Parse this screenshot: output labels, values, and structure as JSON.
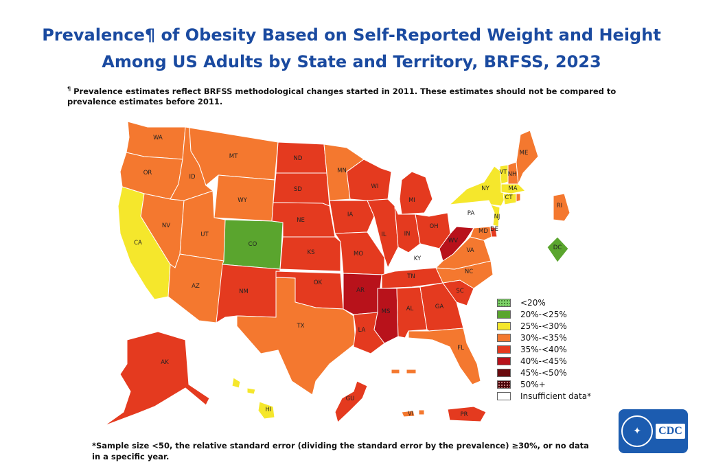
{
  "title": {
    "line1": "Prevalence¶ of Obesity Based on Self-Reported Weight and Height",
    "line2": "Among US Adults by State and Territory, BRFSS, 2023"
  },
  "footnote": {
    "mark": "¶",
    "text": "Prevalence estimates reflect BRFSS methodological changes started in 2011. These estimates should not be compared to prevalence estimates before 2011."
  },
  "legend": [
    {
      "label": "<20%",
      "color": "#7fd36a",
      "pattern": "dots"
    },
    {
      "label": "20%-<25%",
      "color": "#5aa52e"
    },
    {
      "label": "25%-<30%",
      "color": "#f5e72c"
    },
    {
      "label": "30%-<35%",
      "color": "#f4782f"
    },
    {
      "label": "35%-<40%",
      "color": "#e43a1f"
    },
    {
      "label": "40%-<45%",
      "color": "#b8121b"
    },
    {
      "label": "45%-<50%",
      "color": "#6a0a0e"
    },
    {
      "label": "50%+",
      "color": "#4a0508",
      "pattern": "dots"
    },
    {
      "label": "Insufficient data*",
      "color": "#ffffff"
    }
  ],
  "states": {
    "WA": "30%-<35%",
    "OR": "30%-<35%",
    "CA": "25%-<30%",
    "NV": "30%-<35%",
    "ID": "30%-<35%",
    "MT": "30%-<35%",
    "WY": "30%-<35%",
    "UT": "30%-<35%",
    "AZ": "30%-<35%",
    "CO": "20%-<25%",
    "NM": "35%-<40%",
    "ND": "35%-<40%",
    "SD": "35%-<40%",
    "NE": "35%-<40%",
    "KS": "35%-<40%",
    "OK": "35%-<40%",
    "TX": "30%-<35%",
    "MN": "30%-<35%",
    "IA": "35%-<40%",
    "MO": "35%-<40%",
    "AR": "40%-<45%",
    "LA": "35%-<40%",
    "WI": "35%-<40%",
    "IL": "35%-<40%",
    "MI": "35%-<40%",
    "IN": "35%-<40%",
    "OH": "35%-<40%",
    "KY": "Insufficient data*",
    "TN": "35%-<40%",
    "MS": "40%-<45%",
    "AL": "35%-<40%",
    "GA": "35%-<40%",
    "FL": "30%-<35%",
    "SC": "35%-<40%",
    "NC": "30%-<35%",
    "VA": "30%-<35%",
    "WV": "40%-<45%",
    "MD": "30%-<35%",
    "DE": "35%-<40%",
    "PA": "Insufficient data*",
    "NJ": "25%-<30%",
    "NY": "25%-<30%",
    "CT": "25%-<30%",
    "RI": "30%-<35%",
    "MA": "25%-<30%",
    "VT": "25%-<30%",
    "NH": "30%-<35%",
    "ME": "30%-<35%",
    "DC": "20%-<25%",
    "AK": "35%-<40%",
    "HI": "25%-<30%",
    "GU": "35%-<40%",
    "PR": "35%-<40%",
    "VI": "30%-<35%"
  },
  "bottom_note": "*Sample size <50, the relative standard error (dividing the standard error by the prevalence) ≥30%, or no data in a specific year.",
  "logo": {
    "text": "CDC"
  }
}
